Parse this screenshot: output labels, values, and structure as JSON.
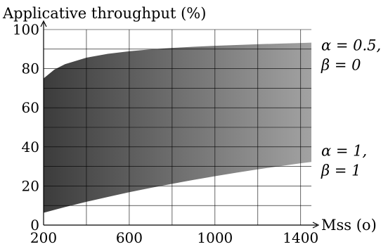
{
  "chart_data": {
    "type": "area",
    "ylabel": "Applicative throughput (%)",
    "xlabel": "Mss (o)",
    "xlim": [
      200,
      1450
    ],
    "ylim": [
      0,
      100
    ],
    "x_ticks": [
      200,
      600,
      1000,
      1400
    ],
    "y_ticks": [
      0,
      20,
      40,
      60,
      80,
      100
    ],
    "grid": true,
    "fill": {
      "gradient_from": "#3c3c3c",
      "gradient_to": "#a2a2a2"
    },
    "upper_boundary": {
      "x": [
        200,
        250,
        300,
        400,
        500,
        600,
        700,
        800,
        900,
        1000,
        1100,
        1200,
        1300,
        1400,
        1450
      ],
      "y": [
        75,
        79.5,
        82.3,
        85.6,
        87.6,
        88.9,
        89.9,
        90.6,
        91.2,
        91.7,
        92.1,
        92.5,
        92.8,
        93.1,
        93.3
      ]
    },
    "lower_boundary": {
      "x": [
        200,
        300,
        400,
        500,
        600,
        700,
        800,
        900,
        1000,
        1100,
        1200,
        1300,
        1400,
        1450
      ],
      "y": [
        6.3,
        9.2,
        11.9,
        14.4,
        16.8,
        19.0,
        21.1,
        23.1,
        25.0,
        26.8,
        28.5,
        30.1,
        31.6,
        32.3
      ]
    },
    "annotations": [
      {
        "line1": "α = 0.5,",
        "line2": "β = 0",
        "y": 88
      },
      {
        "line1": "α = 1,",
        "line2": "β = 1",
        "y": 34
      }
    ]
  }
}
